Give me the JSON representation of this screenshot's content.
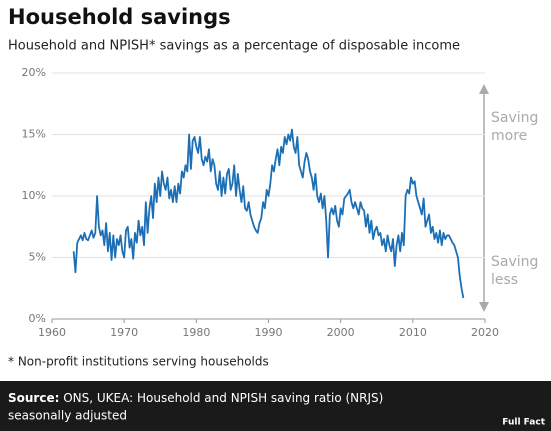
{
  "chart_data": {
    "type": "line",
    "title": "Household savings",
    "subtitle": "Household and NPISH* savings as a percentage of disposable income",
    "footnote": "* Non-profit institutions serving households",
    "source_label": "Source:",
    "source_lines": [
      "ONS, UKEA: Household and NPISH saving ratio (NRJS)",
      "seasonally adjusted"
    ],
    "logo": "Full Fact",
    "annotations": [
      [
        "Saving",
        "more"
      ],
      [
        "Saving",
        "less"
      ]
    ],
    "xlim": [
      1960,
      2020
    ],
    "xticks": [
      1960,
      1970,
      1980,
      1990,
      2000,
      2010,
      2020
    ],
    "ylim": [
      0,
      20
    ],
    "yticks": [
      {
        "value": 0,
        "label": "0%"
      },
      {
        "value": 5,
        "label": "5%"
      },
      {
        "value": 10,
        "label": "10%"
      },
      {
        "value": 15,
        "label": "15%"
      },
      {
        "value": 20,
        "label": "20%"
      }
    ],
    "grid": true,
    "x": [
      1963,
      1963.25,
      1963.5,
      1963.75,
      1964,
      1964.25,
      1964.5,
      1964.75,
      1965,
      1965.25,
      1965.5,
      1965.75,
      1966,
      1966.25,
      1966.5,
      1966.75,
      1967,
      1967.25,
      1967.5,
      1967.75,
      1968,
      1968.25,
      1968.5,
      1968.75,
      1969,
      1969.25,
      1969.5,
      1969.75,
      1970,
      1970.25,
      1970.5,
      1970.75,
      1971,
      1971.25,
      1971.5,
      1971.75,
      1972,
      1972.25,
      1972.5,
      1972.75,
      1973,
      1973.25,
      1973.5,
      1973.75,
      1974,
      1974.25,
      1974.5,
      1974.75,
      1975,
      1975.25,
      1975.5,
      1975.75,
      1976,
      1976.25,
      1976.5,
      1976.75,
      1977,
      1977.25,
      1977.5,
      1977.75,
      1978,
      1978.25,
      1978.5,
      1978.75,
      1979,
      1979.25,
      1979.5,
      1979.75,
      1980,
      1980.25,
      1980.5,
      1980.75,
      1981,
      1981.25,
      1981.5,
      1981.75,
      1982,
      1982.25,
      1982.5,
      1982.75,
      1983,
      1983.25,
      1983.5,
      1983.75,
      1984,
      1984.25,
      1984.5,
      1984.75,
      1985,
      1985.25,
      1985.5,
      1985.75,
      1986,
      1986.25,
      1986.5,
      1986.75,
      1987,
      1987.25,
      1987.5,
      1987.75,
      1988,
      1988.25,
      1988.5,
      1988.75,
      1989,
      1989.25,
      1989.5,
      1989.75,
      1990,
      1990.25,
      1990.5,
      1990.75,
      1991,
      1991.25,
      1991.5,
      1991.75,
      1992,
      1992.25,
      1992.5,
      1992.75,
      1993,
      1993.25,
      1993.5,
      1993.75,
      1994,
      1994.25,
      1994.5,
      1994.75,
      1995,
      1995.25,
      1995.5,
      1995.75,
      1996,
      1996.25,
      1996.5,
      1996.75,
      1997,
      1997.25,
      1997.5,
      1997.75,
      1998,
      1998.25,
      1998.5,
      1998.75,
      1999,
      1999.25,
      1999.5,
      1999.75,
      2000,
      2000.25,
      2000.5,
      2000.75,
      2001,
      2001.25,
      2001.5,
      2001.75,
      2002,
      2002.25,
      2002.5,
      2002.75,
      2003,
      2003.25,
      2003.5,
      2003.75,
      2004,
      2004.25,
      2004.5,
      2004.75,
      2005,
      2005.25,
      2005.5,
      2005.75,
      2006,
      2006.25,
      2006.5,
      2006.75,
      2007,
      2007.25,
      2007.5,
      2007.75,
      2008,
      2008.25,
      2008.5,
      2008.75,
      2009,
      2009.25,
      2009.5,
      2009.75,
      2010,
      2010.25,
      2010.5,
      2010.75,
      2011,
      2011.25,
      2011.5,
      2011.75,
      2012,
      2012.25,
      2012.5,
      2012.75,
      2013,
      2013.25,
      2013.5,
      2013.75,
      2014,
      2014.25,
      2014.5,
      2014.75,
      2015,
      2015.25,
      2015.5,
      2015.75,
      2016,
      2016.25,
      2016.5,
      2016.75,
      2017
    ],
    "series": [
      {
        "name": "Saving ratio",
        "color": "#1d6fb5",
        "values": [
          5.5,
          3.8,
          6.2,
          6.5,
          6.8,
          6.4,
          7.0,
          6.5,
          6.4,
          6.8,
          7.2,
          6.6,
          7.0,
          10.0,
          7.5,
          6.8,
          7.2,
          6.0,
          7.8,
          5.5,
          7.0,
          4.8,
          6.8,
          5.0,
          6.5,
          6.0,
          6.8,
          5.5,
          5.0,
          7.2,
          7.5,
          5.8,
          6.5,
          4.9,
          7.0,
          6.2,
          8.0,
          6.8,
          7.5,
          6.0,
          9.5,
          7.0,
          9.0,
          10.0,
          8.2,
          11.0,
          9.5,
          11.5,
          10.0,
          12.0,
          11.0,
          10.5,
          11.5,
          9.8,
          10.5,
          9.5,
          10.8,
          9.5,
          11.0,
          10.2,
          12.0,
          11.5,
          12.5,
          12.0,
          15.0,
          12.2,
          14.5,
          14.8,
          14.0,
          13.5,
          14.8,
          13.0,
          12.5,
          13.2,
          12.8,
          13.8,
          12.0,
          13.0,
          12.5,
          11.0,
          10.5,
          12.0,
          10.0,
          11.5,
          10.2,
          11.8,
          12.2,
          10.5,
          11.0,
          12.5,
          10.0,
          11.8,
          10.5,
          9.5,
          10.8,
          9.0,
          8.8,
          9.5,
          8.5,
          8.0,
          7.5,
          7.2,
          7.0,
          7.8,
          8.2,
          9.5,
          9.0,
          10.5,
          10.0,
          11.0,
          12.5,
          12.0,
          13.0,
          13.8,
          12.5,
          14.0,
          13.5,
          14.8,
          14.2,
          15.0,
          14.5,
          15.4,
          14.0,
          13.5,
          14.8,
          12.5,
          12.0,
          11.5,
          12.8,
          13.5,
          13.0,
          12.0,
          11.5,
          10.5,
          11.8,
          10.0,
          9.5,
          10.2,
          9.0,
          10.0,
          8.0,
          5.0,
          8.5,
          9.0,
          8.5,
          9.2,
          8.0,
          7.5,
          9.0,
          8.5,
          9.8,
          10.0,
          10.2,
          10.5,
          9.5,
          9.0,
          9.5,
          9.0,
          8.5,
          9.5,
          9.0,
          8.8,
          7.5,
          8.5,
          7.0,
          8.0,
          6.5,
          7.2,
          7.5,
          6.8,
          7.0,
          6.0,
          6.5,
          5.5,
          6.8,
          6.0,
          5.5,
          6.5,
          4.3,
          6.0,
          6.8,
          5.5,
          7.0,
          6.0,
          10.0,
          10.5,
          10.2,
          11.5,
          11.0,
          11.2,
          10.0,
          9.5,
          9.0,
          8.5,
          9.8,
          7.5,
          8.0,
          8.5,
          7.0,
          7.5,
          6.5,
          7.0,
          6.2,
          7.2,
          6.0,
          7.0,
          6.5,
          6.8,
          6.8,
          6.5,
          6.2,
          6.0,
          5.5,
          5.0,
          3.5,
          2.5,
          1.7
        ]
      }
    ]
  }
}
